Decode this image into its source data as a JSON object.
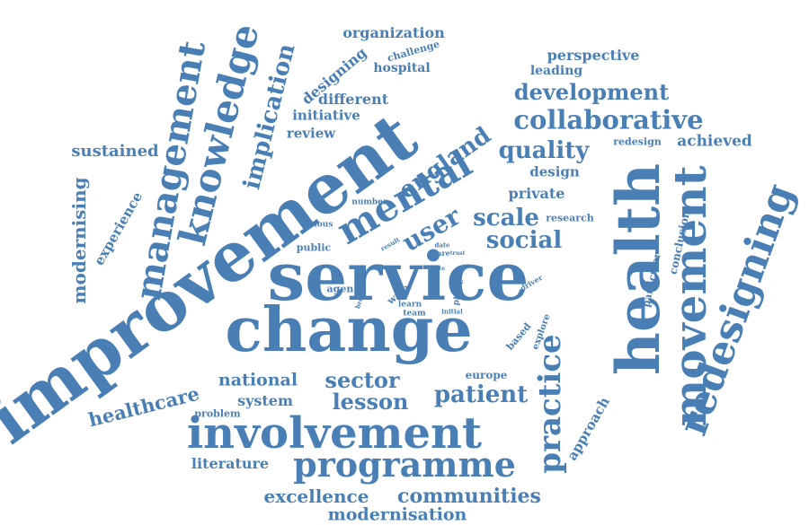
{
  "color": "#4a7fb5",
  "words": [
    "improvement",
    "service",
    "change",
    "health",
    "movement",
    "redesigning",
    "involvement",
    "programme",
    "knowledge",
    "management",
    "mental",
    "practice",
    "collaborative",
    "development",
    "quality",
    "social",
    "scale",
    "user",
    "england",
    "implication",
    "patient",
    "lesson",
    "sector",
    "national",
    "communities",
    "excellence",
    "modernisation",
    "literature",
    "healthcare",
    "system",
    "problem",
    "europe",
    "based",
    "explore",
    "approach",
    "particular",
    "conclusion",
    "research",
    "private",
    "design",
    "redesign",
    "achieved",
    "perspective",
    "leading",
    "hospital",
    "challenge",
    "organization",
    "designing",
    "different",
    "initiative",
    "review",
    "sustained",
    "experience",
    "modernising",
    "number",
    "various",
    "public",
    "result",
    "date",
    "care",
    "trust",
    "site",
    "agent",
    "broad",
    "wale",
    "learn",
    "team",
    "phase",
    "initial",
    "driver"
  ]
}
